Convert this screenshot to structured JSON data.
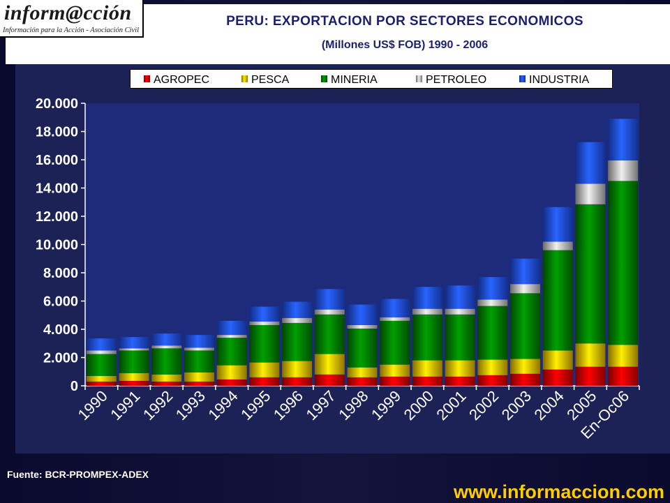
{
  "logo": {
    "brand": "inform@cción",
    "tagline": "Información para la Acción - Asociación Civil"
  },
  "source_note": "Fuente: BCR-PROMPEX-ADEX",
  "website": "www.informaccion.com",
  "colors": {
    "AGROPEC": "#e00000",
    "PESCA": "#f0c000",
    "MINERIA": "#008000",
    "PETROLEO": "#c0c0c0",
    "INDUSTRIA": "#2050f0"
  },
  "chart_data": {
    "type": "bar",
    "stacked": true,
    "title": "PERU: EXPORTACION POR SECTORES ECONOMICOS",
    "subtitle": "(Millones US$ FOB) 1990 - 2006",
    "xlabel": "",
    "ylabel": "",
    "ylim": [
      0,
      20000
    ],
    "yticks": [
      0,
      2000,
      4000,
      6000,
      8000,
      10000,
      12000,
      14000,
      16000,
      18000,
      20000
    ],
    "ytick_labels": [
      "0",
      "2.000",
      "4.000",
      "6.000",
      "8.000",
      "10.000",
      "12.000",
      "14.000",
      "16.000",
      "18.000",
      "20.000"
    ],
    "legend_position": "top",
    "categories": [
      "1990",
      "1991",
      "1992",
      "1993",
      "1994",
      "1995",
      "1996",
      "1997",
      "1998",
      "1999",
      "2000",
      "2001",
      "2002",
      "2003",
      "2004",
      "2005",
      "En-Oc06"
    ],
    "series": [
      {
        "name": "AGROPEC",
        "values": [
          300,
          350,
          300,
          300,
          450,
          600,
          600,
          800,
          600,
          650,
          650,
          650,
          750,
          850,
          1150,
          1350,
          1350
        ]
      },
      {
        "name": "PESCA",
        "values": [
          400,
          550,
          500,
          650,
          1000,
          1050,
          1150,
          1450,
          700,
          850,
          1150,
          1150,
          1100,
          1050,
          1350,
          1650,
          1550
        ]
      },
      {
        "name": "MINERIA",
        "values": [
          1550,
          1600,
          1850,
          1550,
          1950,
          2650,
          2700,
          2800,
          2750,
          3100,
          3250,
          3250,
          3800,
          4650,
          7100,
          9850,
          11600
        ]
      },
      {
        "name": "PETROLEO",
        "values": [
          250,
          150,
          200,
          200,
          200,
          250,
          350,
          350,
          250,
          250,
          400,
          400,
          450,
          650,
          600,
          1450,
          1450
        ]
      },
      {
        "name": "INDUSTRIA",
        "values": [
          850,
          800,
          850,
          900,
          1000,
          1050,
          1150,
          1450,
          1450,
          1300,
          1550,
          1650,
          1600,
          1800,
          2450,
          2950,
          2950
        ]
      }
    ]
  }
}
